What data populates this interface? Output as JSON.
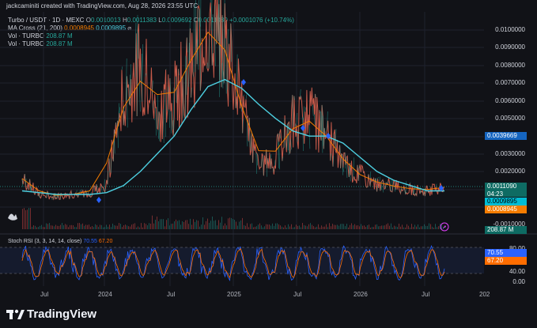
{
  "header": {
    "text": "jackcaminiti created with TradingView.com, Aug 28, 2026 23:55 UTC"
  },
  "legend": {
    "symbol": "Turbo / USDT · 1D · MEXC",
    "o_label": "O",
    "o_value": "0.0010013",
    "h_label": "H",
    "h_value": "0.0011383",
    "l_label": "L",
    "l_value": "0.0009692",
    "c_label": "C",
    "c_value": "0.0011080",
    "change": "+0.0001076 (+10.74%)",
    "ma_label": "MA Cross (21, 200)",
    "ma_fast": "0.0008945",
    "ma_slow": "0.0009895",
    "vol1_label": "Vol · TURBO",
    "vol1_value": "208.87 M",
    "vol2_label": "Vol · TURBO",
    "vol2_value": "208.87 M"
  },
  "price_axis": {
    "labels": [
      "0.0100000",
      "0.0090000",
      "0.0080000",
      "0.0070000",
      "0.0060000",
      "0.0050000",
      "0.0030000",
      "0.0020000",
      "-0.0010000"
    ]
  },
  "badges": {
    "b1": "0.0039669",
    "b2": "0.0011090",
    "b2_time": "04:23",
    "b3": "0.0009895",
    "b4": "0.0008945",
    "b5": "208.87 M"
  },
  "stoch": {
    "legend": "Stoch RSI (3, 3, 14, 14, close)",
    "k_value": "70.55",
    "d_value": "67.20",
    "axis_labels": [
      "80.00",
      "40.00",
      "0.00"
    ],
    "badge_k": "70.55",
    "badge_d": "67.20"
  },
  "time_axis": [
    "Jul",
    "2024",
    "Jul",
    "2025",
    "Jul",
    "2026",
    "Jul",
    "202"
  ],
  "footer": {
    "brand": "TradingView"
  },
  "colors": {
    "up": "#26a69a",
    "down": "#ef5350",
    "ma_fast": "#f57c00",
    "ma_slow": "#4dd0e1",
    "stoch_k": "#2962ff",
    "stoch_d": "#ff6d00"
  },
  "chart_data": {
    "type": "line",
    "title": "Turbo / USDT · 1D · MEXC",
    "x": [
      "2023-06",
      "2023-07",
      "2023-09",
      "2023-11",
      "2024-01",
      "2024-03",
      "2024-04",
      "2024-05",
      "2024-07",
      "2024-09",
      "2024-10",
      "2024-11",
      "2024-12",
      "2025-01",
      "2025-03",
      "2025-04",
      "2025-06",
      "2025-07",
      "2025-08",
      "2025-10",
      "2025-12",
      "2026-01",
      "2026-03",
      "2026-05",
      "2026-07",
      "2026-08"
    ],
    "series": [
      {
        "name": "Turbo / USDT",
        "values": [
          0.0016,
          0.0007,
          0.0006,
          0.0007,
          0.0008,
          0.0013,
          0.0065,
          0.0082,
          0.0055,
          0.0062,
          0.008,
          0.011,
          0.0095,
          0.0055,
          0.0022,
          0.0028,
          0.0048,
          0.0052,
          0.0042,
          0.0024,
          0.0018,
          0.0013,
          0.0012,
          0.001,
          0.0009,
          0.0011
        ]
      },
      {
        "name": "MA Cross (21, 200)",
        "values": [
          0.0009,
          0.0008,
          0.0007,
          0.0007,
          0.0007,
          0.0008,
          0.0012,
          0.002,
          0.003,
          0.004,
          0.0055,
          0.0068,
          0.0072,
          0.0067,
          0.0058,
          0.005,
          0.0043,
          0.004,
          0.004,
          0.0036,
          0.0028,
          0.002,
          0.0015,
          0.0012,
          0.0009,
          0.0009
        ]
      }
    ],
    "ylim": [
      -0.001,
      0.0105
    ],
    "grid": true
  }
}
